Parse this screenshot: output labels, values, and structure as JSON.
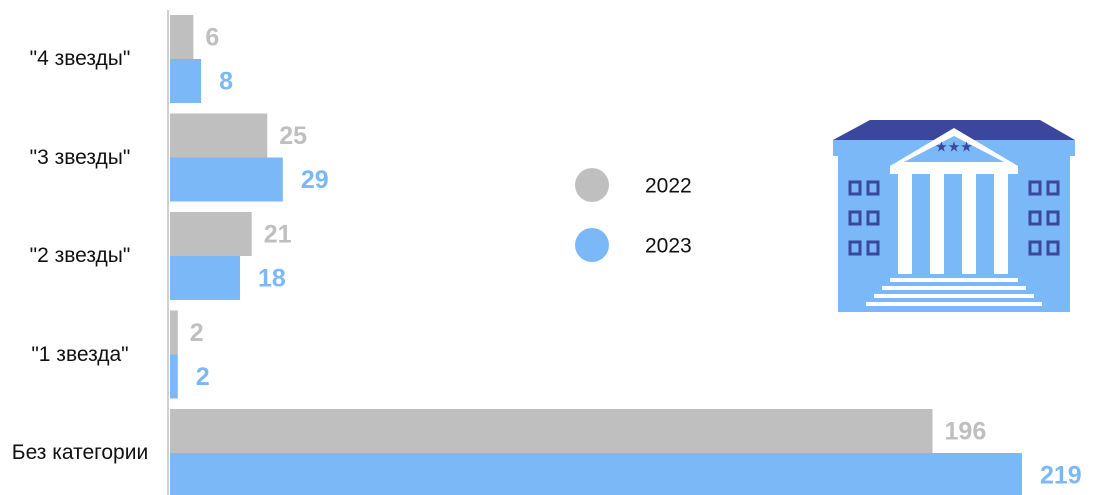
{
  "chart_data": {
    "type": "bar",
    "orientation": "horizontal",
    "categories": [
      "\"4 звезды\"",
      "\"3 звезды\"",
      "\"2 звезды\"",
      "\"1 звезда\"",
      "Без категории"
    ],
    "series": [
      {
        "name": "2022",
        "color": "#bfbfbf",
        "values": [
          6,
          25,
          21,
          2,
          196
        ]
      },
      {
        "name": "2023",
        "color": "#7ab8f7",
        "values": [
          8,
          29,
          18,
          2,
          219
        ]
      }
    ]
  }
}
